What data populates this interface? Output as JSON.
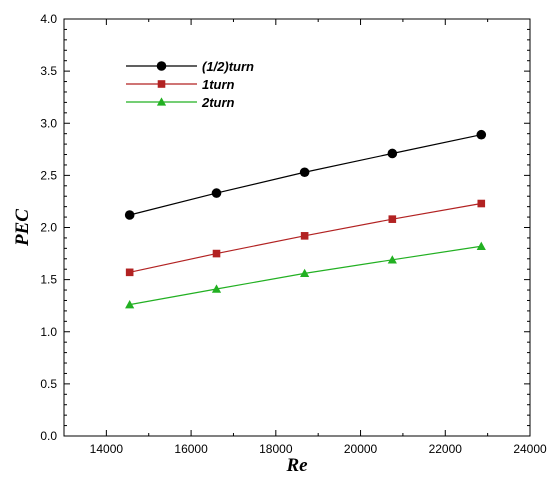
{
  "chart_data": {
    "type": "line",
    "xlabel": "Re",
    "ylabel": "PEC",
    "xlim": [
      13000,
      24000
    ],
    "ylim": [
      0.0,
      4.0
    ],
    "x_ticks": [
      14000,
      16000,
      18000,
      20000,
      22000,
      24000
    ],
    "x_tick_labels": [
      "14000",
      "16000",
      "18000",
      "20000",
      "22000",
      "24000"
    ],
    "y_ticks": [
      0.0,
      0.5,
      1.0,
      1.5,
      2.0,
      2.5,
      3.0,
      3.5,
      4.0
    ],
    "y_tick_labels": [
      "0.0",
      "0.5",
      "1.0",
      "1.5",
      "2.0",
      "2.5",
      "3.0",
      "3.5",
      "4.0"
    ],
    "grid": false,
    "legend_position": "top-left",
    "x": [
      14550,
      16600,
      18680,
      20750,
      22850
    ],
    "series": [
      {
        "name": "(1/2)turn",
        "values": [
          2.12,
          2.33,
          2.53,
          2.71,
          2.89
        ],
        "color": "#000000",
        "marker": "circle"
      },
      {
        "name": "1turn",
        "values": [
          1.57,
          1.75,
          1.92,
          2.08,
          2.23
        ],
        "color": "#b22222",
        "marker": "square"
      },
      {
        "name": "2turn",
        "values": [
          1.26,
          1.41,
          1.56,
          1.69,
          1.82
        ],
        "color": "#22b022",
        "marker": "triangle"
      }
    ]
  }
}
